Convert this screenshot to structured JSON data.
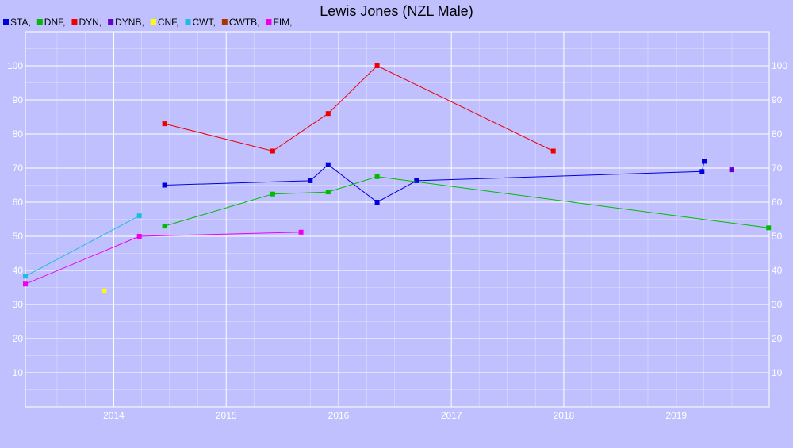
{
  "chart_data": {
    "type": "line",
    "title": "Lewis Jones (NZL Male)",
    "xlabel": "",
    "ylabel": "",
    "x_type": "date",
    "xlim": [
      "2013-03-20",
      "2019-10-30"
    ],
    "ylim": [
      0,
      110
    ],
    "x_ticks": [
      "2014-01-01",
      "2015-01-01",
      "2016-01-01",
      "2017-01-01",
      "2018-01-01",
      "2019-01-01"
    ],
    "x_tick_labels": [
      "2014",
      "2015",
      "2016",
      "2017",
      "2018",
      "2019"
    ],
    "y_ticks": [
      10,
      20,
      30,
      40,
      50,
      60,
      70,
      80,
      90,
      100
    ],
    "y_tick_labels": [
      "10",
      "20",
      "30",
      "40",
      "50",
      "60",
      "70",
      "80",
      "90",
      "100"
    ],
    "grid": true,
    "legend_position": "top-left",
    "background_color": "#c0c0ff",
    "grid_color": "#ffffff",
    "series": [
      {
        "name": "STA",
        "legend_label": "STA,",
        "color": "#0000dd",
        "points": [
          {
            "x": "2014-06-15",
            "y": 65
          },
          {
            "x": "2015-10-01",
            "y": 66.3
          },
          {
            "x": "2015-11-28",
            "y": 71
          },
          {
            "x": "2016-05-05",
            "y": 60
          },
          {
            "x": "2016-09-10",
            "y": 66.3
          },
          {
            "x": "2019-03-26",
            "y": 69
          },
          {
            "x": "2019-04-02",
            "y": 72
          }
        ]
      },
      {
        "name": "DNF",
        "legend_label": "DNF,",
        "color": "#00bb00",
        "points": [
          {
            "x": "2014-06-15",
            "y": 53
          },
          {
            "x": "2015-06-01",
            "y": 62.4
          },
          {
            "x": "2015-11-28",
            "y": 63
          },
          {
            "x": "2016-05-05",
            "y": 67.5
          },
          {
            "x": "2019-10-28",
            "y": 52.5
          }
        ]
      },
      {
        "name": "DYN",
        "legend_label": "DYN,",
        "color": "#ee0000",
        "points": [
          {
            "x": "2014-06-15",
            "y": 83
          },
          {
            "x": "2015-06-01",
            "y": 75
          },
          {
            "x": "2015-11-28",
            "y": 86
          },
          {
            "x": "2016-05-05",
            "y": 100
          },
          {
            "x": "2017-11-28",
            "y": 75
          }
        ]
      },
      {
        "name": "DYNB",
        "legend_label": "DYNB,",
        "color": "#6600cc",
        "points": [
          {
            "x": "2019-06-30",
            "y": 69.5
          }
        ]
      },
      {
        "name": "CNF",
        "legend_label": "CNF,",
        "color": "#ffff00",
        "points": [
          {
            "x": "2013-12-01",
            "y": 34
          }
        ]
      },
      {
        "name": "CWT",
        "legend_label": "CWT,",
        "color": "#22bbdd",
        "points": [
          {
            "x": "2013-03-20",
            "y": 38.3
          },
          {
            "x": "2014-03-25",
            "y": 56
          }
        ]
      },
      {
        "name": "CWTB",
        "legend_label": "CWTB,",
        "color": "#aa3300",
        "points": []
      },
      {
        "name": "FIM",
        "legend_label": "FIM,",
        "color": "#ee00ee",
        "points": [
          {
            "x": "2013-03-20",
            "y": 36
          },
          {
            "x": "2014-03-25",
            "y": 50
          },
          {
            "x": "2015-09-01",
            "y": 51.2
          }
        ]
      }
    ]
  }
}
